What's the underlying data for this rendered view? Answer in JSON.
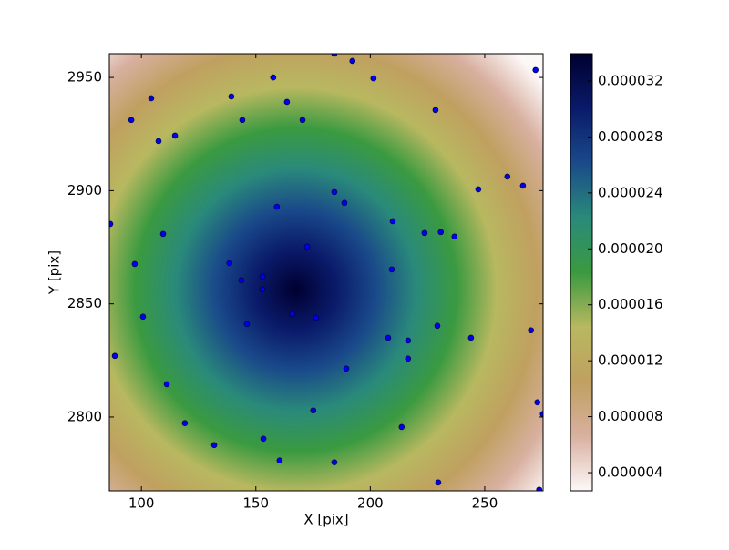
{
  "chart_data": {
    "type": "scatter",
    "x_label": "X [pix]",
    "y_label": "Y [pix]",
    "x": [
      184.3,
      192.2,
      272.2,
      157.6,
      201.4,
      104.3,
      139.3,
      163.6,
      228.5,
      95.6,
      144.1,
      170.4,
      114.7,
      107.5,
      259.9,
      247.2,
      266.7,
      184.3,
      188.7,
      159.2,
      86.4,
      209.8,
      223.7,
      230.8,
      236.8,
      109.5,
      172.4,
      138.5,
      97.1,
      209.4,
      152.9,
      143.7,
      152.9,
      166.0,
      176.3,
      100.7,
      146.1,
      229.3,
      270.2,
      207.8,
      216.5,
      244.0,
      216.5,
      88.4,
      189.5,
      111.1,
      175.1,
      119.0,
      213.7,
      131.8,
      153.3,
      160.4,
      184.3,
      273.0,
      275.4,
      229.7,
      273.8
    ],
    "y": [
      2960.5,
      2957.3,
      2953.3,
      2950.0,
      2949.6,
      2940.8,
      2941.6,
      2939.2,
      2935.6,
      2931.2,
      2931.2,
      2931.2,
      2924.3,
      2921.9,
      2906.2,
      2900.6,
      2902.2,
      2899.4,
      2894.6,
      2892.9,
      2885.3,
      2886.5,
      2881.3,
      2881.7,
      2879.7,
      2880.9,
      2875.3,
      2868.0,
      2867.6,
      2865.2,
      2862.0,
      2860.4,
      2856.4,
      2845.5,
      2843.9,
      2844.3,
      2841.1,
      2840.3,
      2838.3,
      2835.0,
      2833.8,
      2835.0,
      2825.8,
      2827.0,
      2821.4,
      2814.5,
      2802.9,
      2797.3,
      2795.6,
      2787.6,
      2790.4,
      2780.8,
      2780.0,
      2806.5,
      2801.3,
      2771.1,
      2767.9
    ],
    "color": "#0000ee",
    "xlim": [
      86,
      275.5
    ],
    "xticks": [
      100,
      150,
      200,
      250
    ],
    "ylim": [
      2767.4,
      2960.5
    ],
    "yticks": [
      2800,
      2850,
      2900,
      2950
    ],
    "colormap": [
      "#fdf8f8",
      "#d8b0a0",
      "#c0a060",
      "#b8b860",
      "#3a9a40",
      "#2a8a7a",
      "#1a4a8a",
      "#0a1a6a",
      "#000030"
    ],
    "colorbar": {
      "lim": [
        2.7e-06,
        3.395e-05
      ],
      "ticks": [
        {
          "value": 4e-06,
          "label": "0.000004"
        },
        {
          "value": 8e-06,
          "label": "0.000008"
        },
        {
          "value": 1.2e-05,
          "label": "0.000012"
        },
        {
          "value": 1.6e-05,
          "label": "0.000016"
        },
        {
          "value": 2e-05,
          "label": "0.000020"
        },
        {
          "value": 2.4e-05,
          "label": "0.000024"
        },
        {
          "value": 2.8e-05,
          "label": "0.000028"
        },
        {
          "value": 3.2e-05,
          "label": "0.000032"
        }
      ]
    }
  }
}
